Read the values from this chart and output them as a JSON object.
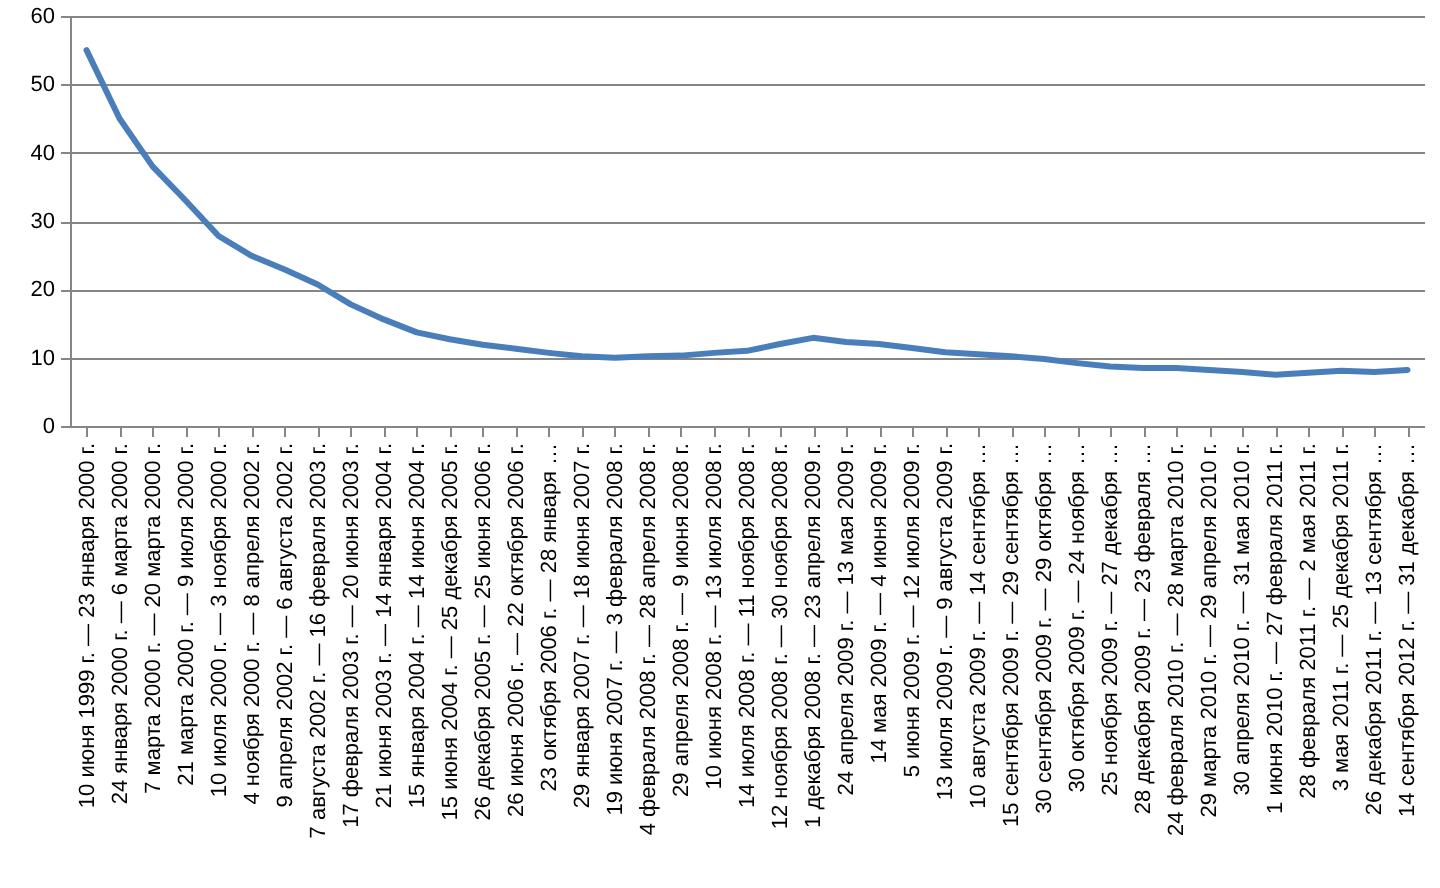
{
  "chart_data": {
    "type": "line",
    "categories": [
      "10 июня 1999 г. — 23 января 2000 г.",
      "24 января 2000 г. — 6 марта 2000 г.",
      "7 марта 2000 г. — 20 марта 2000 г.",
      "21 марта 2000 г. — 9 июля 2000 г.",
      "10 июля 2000 г. — 3 ноября 2000 г.",
      "4 ноября 2000 г. — 8 апреля 2002 г.",
      "9 апреля 2002 г. — 6 августа 2002 г.",
      "7 августа 2002 г. — 16 февраля 2003 г.",
      "17 февраля 2003 г. — 20 июня 2003 г.",
      "21 июня 2003 г. — 14 января 2004 г.",
      "15 января 2004 г. — 14 июня 2004 г.",
      "15 июня 2004 г. — 25 декабря 2005 г.",
      "26 декабря 2005 г. — 25 июня 2006 г.",
      "26 июня 2006 г. — 22 октября 2006 г.",
      "23 октября 2006 г. — 28 января …",
      "29 января 2007 г. — 18 июня 2007 г.",
      "19 июня 2007 г. — 3 февраля 2008 г.",
      "4 февраля 2008 г. — 28 апреля 2008 г.",
      "29 апреля 2008 г. — 9 июня 2008 г.",
      "10 июня 2008 г. — 13 июля 2008 г.",
      "14 июля 2008 г. — 11 ноября 2008 г.",
      "12 ноября 2008 г. — 30 ноября 2008 г.",
      "1 декабря 2008 г. — 23 апреля 2009 г.",
      "24 апреля 2009 г. — 13 мая 2009 г.",
      "14 мая 2009 г. — 4 июня 2009 г.",
      "5 июня 2009 г. — 12 июля 2009 г.",
      "13 июля 2009 г. — 9 августа 2009 г.",
      "10 августа 2009 г. — 14 сентября …",
      "15 сентября 2009 г. — 29 сентября …",
      "30 сентября 2009 г. — 29 октября …",
      "30 октября 2009 г. — 24 ноября …",
      "25 ноября 2009 г. — 27 декабря …",
      "28 декабря 2009 г. — 23 февраля …",
      "24 февраля 2010 г. — 28 марта 2010 г.",
      "29 марта 2010 г. — 29 апреля 2010 г.",
      "30 апреля 2010 г. — 31 мая 2010 г.",
      "1 июня 2010 г. — 27 февраля 2011 г.",
      "28 февраля 2011 г. — 2 мая 2011 г.",
      "3 мая 2011 г. — 25 декабря 2011 г.",
      "26 декабря 2011 г. — 13 сентября …",
      "14 сентября 2012 г. — 31 декабря …"
    ],
    "series": [
      {
        "color": "#4a7ebb",
        "values": [
          55,
          45,
          38,
          33,
          27.8,
          24.9,
          22.9,
          20.7,
          17.8,
          15.6,
          13.7,
          12.7,
          11.9,
          11.3,
          10.7,
          10.2,
          10.0,
          10.2,
          10.3,
          10.7,
          11.0,
          12.0,
          12.9,
          12.3,
          12.0,
          11.4,
          10.8,
          10.5,
          10.2,
          9.8,
          9.2,
          8.7,
          8.5,
          8.5,
          8.2,
          7.9,
          7.5,
          7.8,
          8.1,
          7.9,
          8.2
        ]
      }
    ],
    "ylim": [
      0,
      60
    ],
    "yticks": [
      0,
      10,
      20,
      30,
      40,
      50,
      60
    ],
    "grid": "y",
    "marker": "none",
    "line_style": "solid"
  }
}
